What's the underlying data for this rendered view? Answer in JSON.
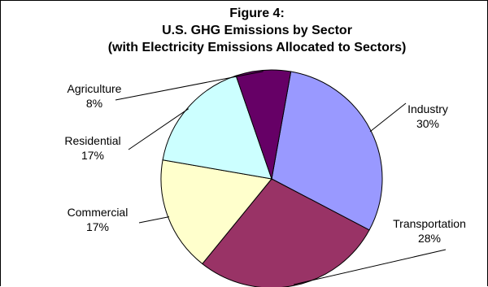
{
  "chart_data": {
    "type": "pie",
    "title": "Figure 4:",
    "subtitle": "U.S. GHG Emissions by Sector",
    "subtitle2": "(with Electricity Emissions Allocated to Sectors)",
    "slices": [
      {
        "name": "Industry",
        "value": 30,
        "label": "30%",
        "color": "#9999ff"
      },
      {
        "name": "Transportation",
        "value": 28,
        "label": "28%",
        "color": "#993366"
      },
      {
        "name": "Commercial",
        "value": 17,
        "label": "17%",
        "color": "#ffffcc"
      },
      {
        "name": "Residential",
        "value": 17,
        "label": "17%",
        "color": "#ccffff"
      },
      {
        "name": "Agriculture",
        "value": 8,
        "label": "8%",
        "color": "#660066"
      }
    ],
    "legend": "none"
  }
}
